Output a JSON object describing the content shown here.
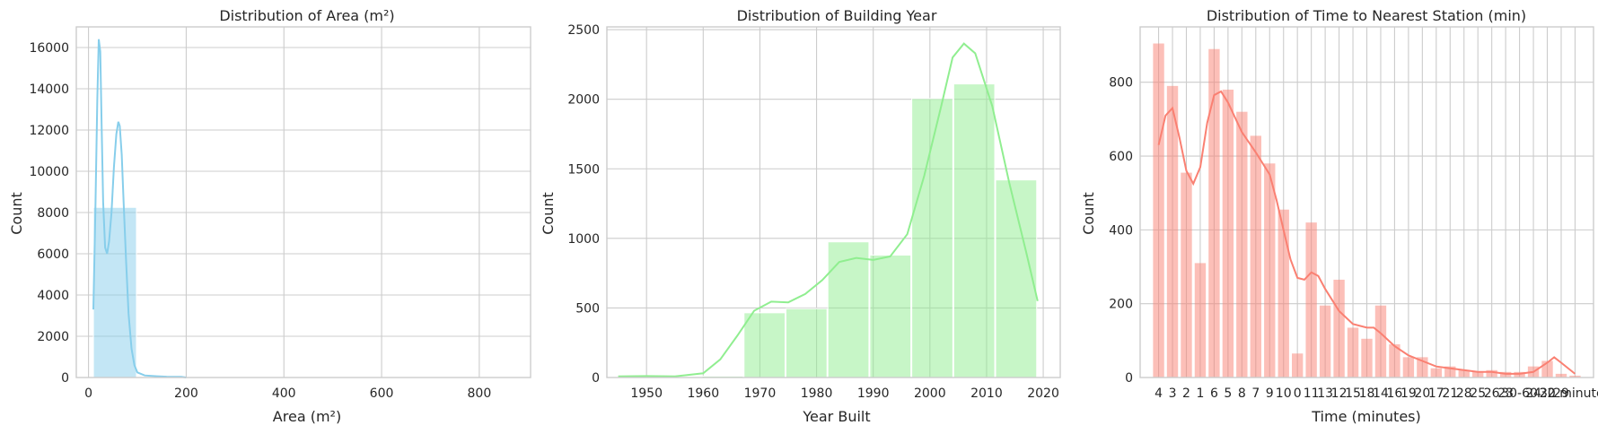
{
  "colors": {
    "grid": "#cccccc",
    "spine": "#cccccc",
    "text": "#262626",
    "area": "#87ceeb",
    "year": "#90ee90",
    "time": "#fa8072"
  },
  "chart_data": [
    {
      "type": "bar",
      "title": "Distribution of Area (m²)",
      "xlabel": "Area (m²)",
      "ylabel": "Count",
      "xlim": [
        -25,
        905
      ],
      "ylim": [
        0,
        17000
      ],
      "xticks": [
        "0",
        "200",
        "400",
        "600",
        "800"
      ],
      "xtick_values": [
        0,
        200,
        400,
        600,
        800
      ],
      "yticks": [
        "0",
        "2000",
        "4000",
        "6000",
        "8000",
        "10000",
        "12000",
        "14000",
        "16000"
      ],
      "ytick_values": [
        0,
        2000,
        4000,
        6000,
        8000,
        10000,
        12000,
        14000,
        16000
      ],
      "bins": [
        {
          "x0": 10,
          "x1": 100,
          "count": 8250
        },
        {
          "x0": 100,
          "x1": 190,
          "count": 30
        }
      ],
      "kde": [
        [
          10,
          3300
        ],
        [
          14,
          8000
        ],
        [
          18,
          13500
        ],
        [
          21,
          16400
        ],
        [
          24,
          15800
        ],
        [
          27,
          12000
        ],
        [
          30,
          8500
        ],
        [
          34,
          6300
        ],
        [
          38,
          6000
        ],
        [
          42,
          6600
        ],
        [
          47,
          8000
        ],
        [
          52,
          10200
        ],
        [
          57,
          11800
        ],
        [
          61,
          12400
        ],
        [
          64,
          12200
        ],
        [
          68,
          10800
        ],
        [
          72,
          8400
        ],
        [
          77,
          5600
        ],
        [
          82,
          3100
        ],
        [
          88,
          1400
        ],
        [
          94,
          600
        ],
        [
          100,
          250
        ],
        [
          115,
          100
        ],
        [
          140,
          60
        ],
        [
          160,
          40
        ],
        [
          190,
          30
        ],
        [
          200,
          0
        ]
      ],
      "grid": true
    },
    {
      "type": "bar",
      "title": "Distribution of Building Year",
      "xlabel": "Year Built",
      "ylabel": "Count",
      "xlim": [
        1943,
        2023
      ],
      "ylim": [
        0,
        2520
      ],
      "xticks": [
        "1950",
        "1960",
        "1970",
        "1980",
        "1990",
        "2000",
        "2010",
        "2020"
      ],
      "xtick_values": [
        1950,
        1960,
        1970,
        1980,
        1990,
        2000,
        2010,
        2020
      ],
      "yticks": [
        "0",
        "500",
        "1000",
        "1500",
        "2000",
        "2500"
      ],
      "ytick_values": [
        0,
        500,
        1000,
        1500,
        2000,
        2500
      ],
      "bins": [
        {
          "x0": 1945,
          "x1": 1952.4,
          "count": 3
        },
        {
          "x0": 1952.4,
          "x1": 1959.8,
          "count": 5
        },
        {
          "x0": 1959.8,
          "x1": 1967.2,
          "count": 10
        },
        {
          "x0": 1967.2,
          "x1": 1974.6,
          "count": 465
        },
        {
          "x0": 1974.6,
          "x1": 1982.0,
          "count": 495
        },
        {
          "x0": 1982.0,
          "x1": 1989.4,
          "count": 975
        },
        {
          "x0": 1989.4,
          "x1": 1996.8,
          "count": 880
        },
        {
          "x0": 1996.8,
          "x1": 2004.2,
          "count": 2005
        },
        {
          "x0": 2004.2,
          "x1": 2011.6,
          "count": 2110
        },
        {
          "x0": 2011.6,
          "x1": 2019.0,
          "count": 1420
        }
      ],
      "kde": [
        [
          1945,
          8
        ],
        [
          1950,
          10
        ],
        [
          1955,
          8
        ],
        [
          1960,
          30
        ],
        [
          1963,
          130
        ],
        [
          1966,
          300
        ],
        [
          1969,
          480
        ],
        [
          1972,
          545
        ],
        [
          1975,
          540
        ],
        [
          1978,
          600
        ],
        [
          1981,
          700
        ],
        [
          1984,
          830
        ],
        [
          1987,
          860
        ],
        [
          1990,
          845
        ],
        [
          1993,
          870
        ],
        [
          1996,
          1030
        ],
        [
          1999,
          1450
        ],
        [
          2002,
          1950
        ],
        [
          2004,
          2300
        ],
        [
          2006,
          2400
        ],
        [
          2008,
          2330
        ],
        [
          2011,
          1950
        ],
        [
          2014,
          1400
        ],
        [
          2017,
          900
        ],
        [
          2019,
          550
        ]
      ],
      "grid": true
    },
    {
      "type": "bar",
      "title": "Distribution of Time to Nearest Station (min)",
      "xlabel": "Time (minutes)",
      "ylabel": "Count",
      "ylim": [
        0,
        950
      ],
      "categories": [
        "4",
        "3",
        "2",
        "1",
        "6",
        "5",
        "8",
        "7",
        "9",
        "10",
        "0",
        "11",
        "13",
        "12",
        "15",
        "18",
        "14",
        "16",
        "19",
        "20",
        "17",
        "21",
        "28",
        "25",
        "26",
        "23",
        "30-60",
        "24",
        "22",
        "29",
        "30 minutes"
      ],
      "xtick_labels": [
        "4",
        "3",
        "2",
        "1",
        "6",
        "5",
        "8",
        "7",
        "9",
        "10",
        "0",
        "11",
        "13",
        "12",
        "15",
        "18",
        "14",
        "16",
        "19",
        "20",
        "17",
        "21",
        "28",
        "25",
        "26",
        "23",
        "30-60",
        "24",
        "22",
        "29",
        "30 minutes"
      ],
      "values": [
        905,
        790,
        555,
        310,
        890,
        780,
        720,
        655,
        580,
        455,
        65,
        420,
        195,
        265,
        135,
        105,
        195,
        90,
        55,
        55,
        25,
        30,
        20,
        15,
        20,
        15,
        15,
        30,
        45,
        10,
        5
      ],
      "yticks": [
        "0",
        "200",
        "400",
        "600",
        "800"
      ],
      "ytick_values": [
        0,
        200,
        400,
        600,
        800
      ],
      "kde": [
        [
          0,
          630
        ],
        [
          0.5,
          710
        ],
        [
          1,
          730
        ],
        [
          1.5,
          650
        ],
        [
          2,
          560
        ],
        [
          2.5,
          525
        ],
        [
          3,
          570
        ],
        [
          3.5,
          690
        ],
        [
          4,
          765
        ],
        [
          4.5,
          775
        ],
        [
          5,
          745
        ],
        [
          6,
          665
        ],
        [
          7,
          610
        ],
        [
          8,
          550
        ],
        [
          8.5,
          480
        ],
        [
          9,
          400
        ],
        [
          9.5,
          320
        ],
        [
          10,
          270
        ],
        [
          10.5,
          265
        ],
        [
          11,
          285
        ],
        [
          11.5,
          275
        ],
        [
          12,
          240
        ],
        [
          13,
          180
        ],
        [
          14,
          145
        ],
        [
          15,
          135
        ],
        [
          15.5,
          135
        ],
        [
          16,
          120
        ],
        [
          17,
          85
        ],
        [
          18,
          60
        ],
        [
          19,
          45
        ],
        [
          20,
          30
        ],
        [
          21,
          25
        ],
        [
          22,
          20
        ],
        [
          23,
          15
        ],
        [
          24,
          15
        ],
        [
          25,
          10
        ],
        [
          26,
          10
        ],
        [
          27,
          15
        ],
        [
          28,
          40
        ],
        [
          28.5,
          55
        ],
        [
          29,
          40
        ],
        [
          30,
          10
        ]
      ],
      "grid": true
    }
  ]
}
